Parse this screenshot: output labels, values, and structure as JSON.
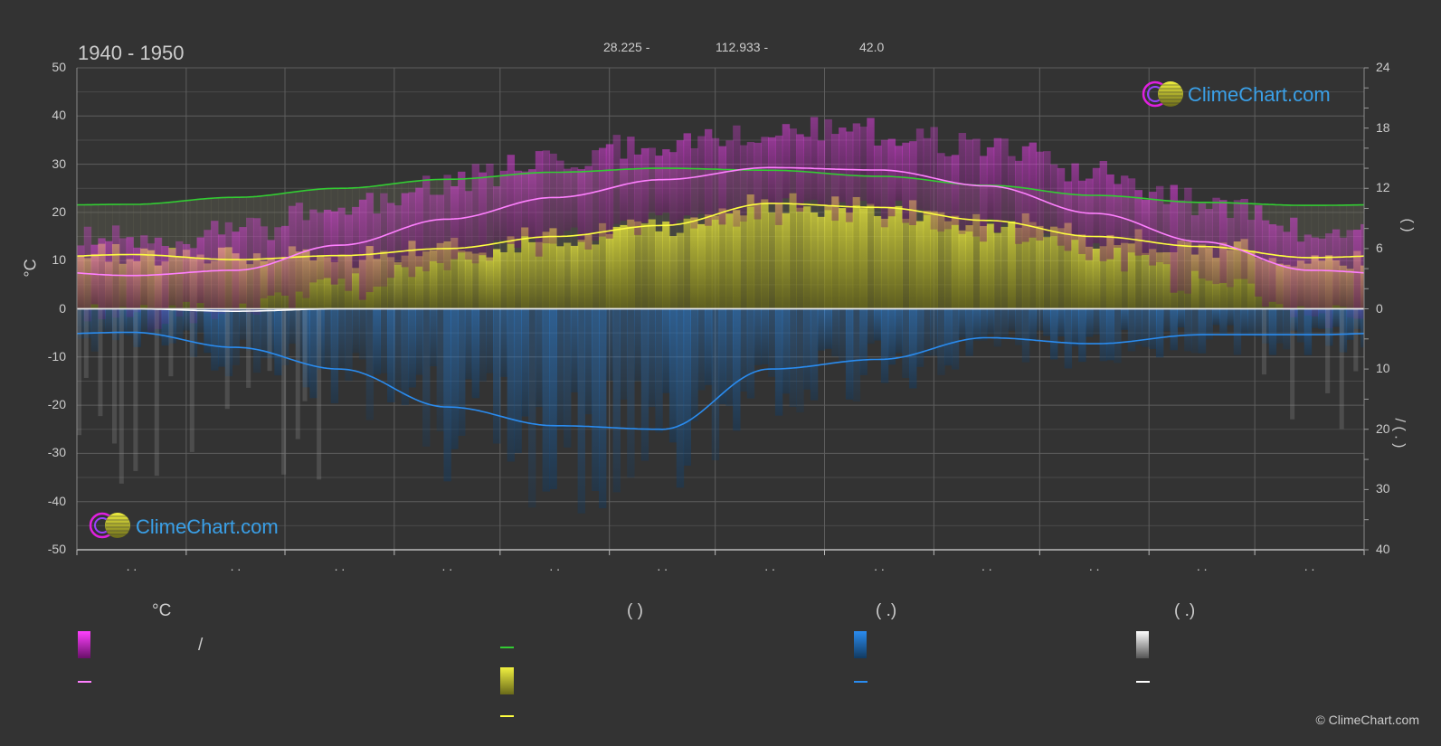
{
  "header": {
    "title": "1940 - 1950",
    "coord_lat": "28.225 -",
    "coord_lon": "112.933 -",
    "coord_elev": "42.0"
  },
  "axes": {
    "left_unit": "°C",
    "right_top_label": "(   )",
    "right_bottom_label": "/   (  .  )"
  },
  "legend": {
    "col1_head": "°C",
    "col1_row1": "/",
    "col2_head": "(          )",
    "col3_head": "(   .)",
    "col4_head": "(   .)"
  },
  "watermark_text": "ClimeChart.com",
  "copyright": "© ClimeChart.com",
  "colors": {
    "background": "#333333",
    "grid": "#555555",
    "temp_range_fill": "#e020e0",
    "temp_mean_line": "#ff80ff",
    "daylight_line": "#33cc33",
    "sunshine_fill": "#e0e040",
    "sunshine_line": "#ffff40",
    "precip_fill": "#1e88e5",
    "precip_line": "#2a8cf0",
    "snow_fill": "#aaaaaa",
    "snow_line": "#ffffff",
    "watermark_blue": "#3aa0e8"
  },
  "chart_data": {
    "type": "line",
    "title": "1940 - 1950",
    "categories": [
      ". .",
      ". .",
      ". .",
      ". .",
      ". .",
      ". .",
      ". .",
      ". .",
      ". .",
      ". .",
      ". .",
      ". ."
    ],
    "ylim_left": [
      -50,
      50
    ],
    "yticks_left": [
      50,
      40,
      30,
      20,
      10,
      0,
      -10,
      -20,
      -30,
      -40,
      -50
    ],
    "yticks_right_top": [
      24,
      18,
      12,
      6,
      0
    ],
    "ylim_right_top": [
      0,
      24
    ],
    "yticks_right_bottom": [
      0,
      10,
      20,
      30,
      40
    ],
    "ylim_right_bottom": [
      0,
      40
    ],
    "series": [
      {
        "axis": "left_temp",
        "values": [
          6.9,
          8.0,
          13.2,
          18.6,
          23.1,
          26.8,
          29.3,
          28.8,
          25.5,
          19.8,
          13.9,
          8.0
        ]
      },
      {
        "axis": "right_hours",
        "values": [
          10.4,
          11.1,
          12.0,
          12.9,
          13.6,
          14.0,
          13.8,
          13.2,
          12.3,
          11.3,
          10.6,
          10.3
        ]
      },
      {
        "axis": "right_hours",
        "values": [
          5.4,
          4.9,
          5.3,
          6.0,
          7.2,
          8.3,
          10.5,
          10.1,
          8.8,
          7.2,
          6.2,
          5.1
        ]
      },
      {
        "axis": "right_precip",
        "values": [
          3.9,
          6.4,
          10.0,
          16.3,
          19.4,
          20.0,
          10.0,
          8.4,
          4.8,
          5.8,
          4.3,
          4.3
        ]
      },
      {
        "axis": "right_precip",
        "values": [
          0.0,
          0.4,
          0.0,
          0.0,
          0.0,
          0.0,
          0.0,
          0.0,
          0.0,
          0.0,
          0.0,
          0.0
        ]
      }
    ]
  }
}
